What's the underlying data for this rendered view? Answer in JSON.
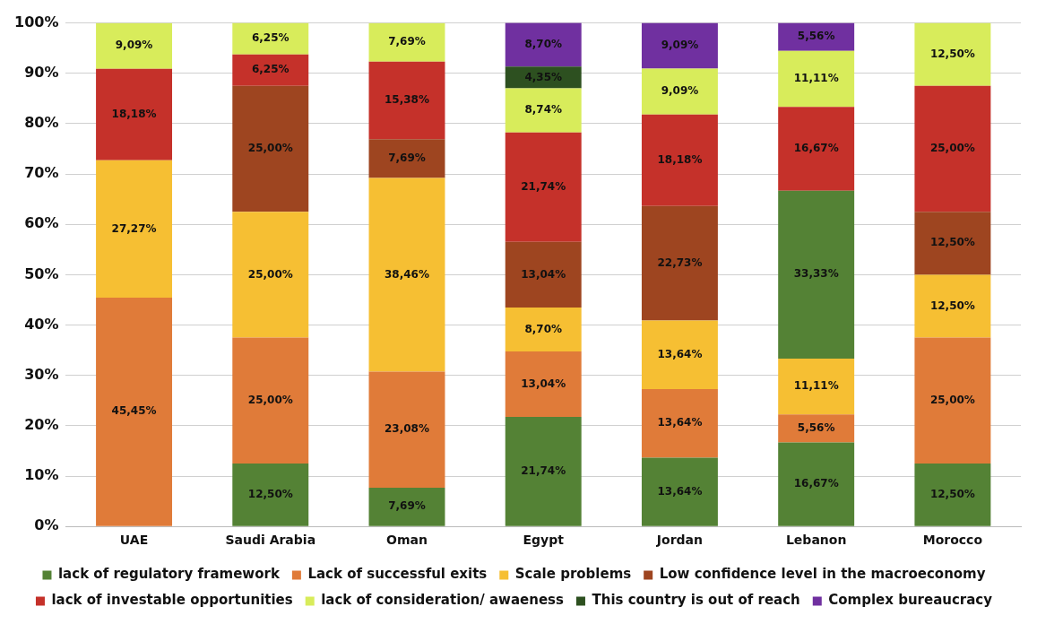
{
  "chart_data": {
    "type": "bar",
    "stacked": true,
    "categories": [
      "UAE",
      "Saudi Arabia",
      "Oman",
      "Egypt",
      "Jordan",
      "Lebanon",
      "Morocco"
    ],
    "ylim": [
      0,
      100
    ],
    "yticks": [
      {
        "value": 0,
        "label": "0%"
      },
      {
        "value": 10,
        "label": "10%"
      },
      {
        "value": 20,
        "label": "20%"
      },
      {
        "value": 30,
        "label": "30%"
      },
      {
        "value": 40,
        "label": "40%"
      },
      {
        "value": 50,
        "label": "50%"
      },
      {
        "value": 60,
        "label": "60%"
      },
      {
        "value": 70,
        "label": "70%"
      },
      {
        "value": 80,
        "label": "80%"
      },
      {
        "value": 90,
        "label": "90%"
      },
      {
        "value": 100,
        "label": "100%"
      }
    ],
    "grid": "y",
    "legend": "bottom",
    "series": [
      {
        "name": "lack of regulatory framework",
        "color": "#548235",
        "values": [
          null,
          12.5,
          7.69,
          21.74,
          13.64,
          16.67,
          12.5
        ],
        "value_labels": [
          null,
          "12,50%",
          "7,69%",
          "21,74%",
          "13,64%",
          "16,67%",
          "12,50%"
        ]
      },
      {
        "name": "Lack of successful exits",
        "color": "#e07b39",
        "values": [
          45.45,
          25,
          23.08,
          13.04,
          13.64,
          5.56,
          25
        ],
        "value_labels": [
          "45,45%",
          "25,00%",
          "23,08%",
          "13,04%",
          "13,64%",
          "5,56%",
          "25,00%"
        ]
      },
      {
        "name": "Scale problems",
        "color": "#f6bf33",
        "values": [
          27.27,
          25,
          38.46,
          8.7,
          13.64,
          11.11,
          12.5
        ],
        "value_labels": [
          "27,27%",
          "25,00%",
          "38,46%",
          "8,70%",
          "13,64%",
          "11,11%",
          "12,50%"
        ]
      },
      {
        "name": "Low confidence level in the macroeconomy",
        "color": "#9e4520",
        "colors": [
          "#9e4520",
          "#9e4520",
          "#9e4520",
          "#9e4520",
          "#9e4520",
          "#548235",
          "#9e4520"
        ],
        "values": [
          null,
          25,
          7.69,
          13.04,
          22.73,
          33.33,
          12.5
        ],
        "value_labels": [
          null,
          "25,00%",
          "7,69%",
          "13,04%",
          "22,73%",
          "33,33%",
          "12,50%"
        ]
      },
      {
        "name": "lack of investable opportunities",
        "color": "#c5312a",
        "values": [
          18.18,
          6.25,
          15.38,
          21.74,
          18.18,
          16.67,
          25
        ],
        "value_labels": [
          "18,18%",
          "6,25%",
          "15,38%",
          "21,74%",
          "18,18%",
          "16,67%",
          "25,00%"
        ]
      },
      {
        "name": "lack of consideration/ awaeness",
        "color": "#d8ec5b",
        "values": [
          9.09,
          6.25,
          7.69,
          8.74,
          9.09,
          11.11,
          12.5
        ],
        "value_labels": [
          "9,09%",
          "6,25%",
          "7,69%",
          "8,74%",
          "9,09%",
          "11,11%",
          "12,50%"
        ]
      },
      {
        "name": "This country is out of reach",
        "color": "#2d5020",
        "values": [
          null,
          null,
          null,
          4.35,
          null,
          null,
          null
        ],
        "value_labels": [
          null,
          null,
          null,
          "4,35%",
          null,
          null,
          null
        ]
      },
      {
        "name": "Complex bureaucracy",
        "color": "#7030a0",
        "values": [
          null,
          null,
          null,
          8.7,
          9.09,
          5.56,
          null
        ],
        "value_labels": [
          null,
          null,
          null,
          "8,70%",
          "9,09%",
          "5,56%",
          null
        ]
      }
    ]
  }
}
